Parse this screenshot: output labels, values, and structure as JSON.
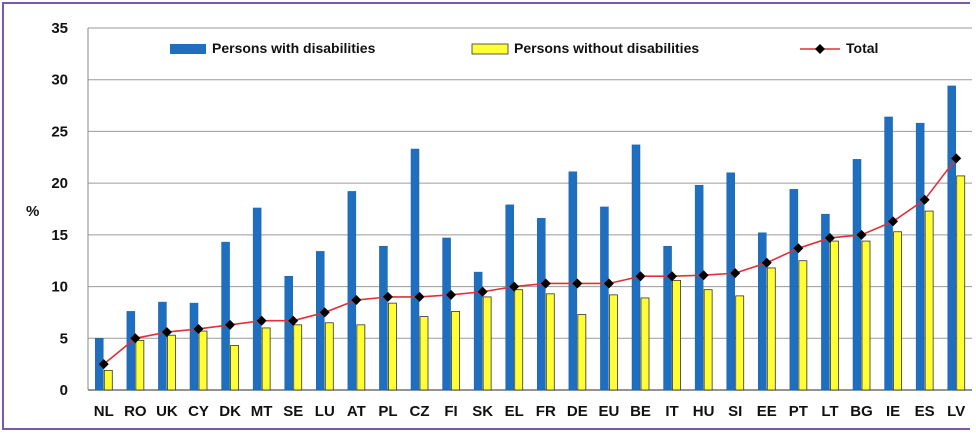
{
  "chart_data": {
    "type": "bar",
    "title": "",
    "xlabel": "",
    "ylabel": "%",
    "ylim": [
      0,
      35
    ],
    "yticks": [
      0,
      5,
      10,
      15,
      20,
      25,
      30,
      35
    ],
    "grid": true,
    "legend_position": "top",
    "categories": [
      "NL",
      "RO",
      "UK",
      "CY",
      "DK",
      "MT",
      "SE",
      "LU",
      "AT",
      "PL",
      "CZ",
      "FI",
      "SK",
      "EL",
      "FR",
      "DE",
      "EU",
      "BE",
      "IT",
      "HU",
      "SI",
      "EE",
      "PT",
      "LT",
      "BG",
      "IE",
      "ES",
      "LV"
    ],
    "series": [
      {
        "name": "Persons with disabilities",
        "kind": "bar",
        "color": "#1f6fc0",
        "values": [
          5.0,
          7.6,
          8.5,
          8.4,
          14.3,
          17.6,
          11.0,
          13.4,
          19.2,
          13.9,
          23.3,
          14.7,
          11.4,
          17.9,
          16.6,
          21.1,
          17.7,
          23.7,
          13.9,
          19.8,
          21.0,
          15.2,
          19.4,
          17.0,
          22.3,
          26.4,
          25.8,
          29.4
        ]
      },
      {
        "name": "Persons without disabilities",
        "kind": "bar",
        "color": "#ffff33",
        "values": [
          1.9,
          4.8,
          5.3,
          5.7,
          4.3,
          6.0,
          6.3,
          6.5,
          6.3,
          8.4,
          7.1,
          7.6,
          9.0,
          9.7,
          9.3,
          7.3,
          9.2,
          8.9,
          10.6,
          9.7,
          9.1,
          11.8,
          12.5,
          14.4,
          14.4,
          15.3,
          17.3,
          20.7
        ]
      },
      {
        "name": "Total",
        "kind": "line",
        "color": "#e0303a",
        "values": [
          2.5,
          5.0,
          5.6,
          5.9,
          6.3,
          6.7,
          6.7,
          7.5,
          8.7,
          9.0,
          9.0,
          9.2,
          9.5,
          10.0,
          10.3,
          10.3,
          10.3,
          11.0,
          11.0,
          11.1,
          11.3,
          12.3,
          13.7,
          14.7,
          15.0,
          16.3,
          18.4,
          22.4
        ]
      }
    ]
  }
}
